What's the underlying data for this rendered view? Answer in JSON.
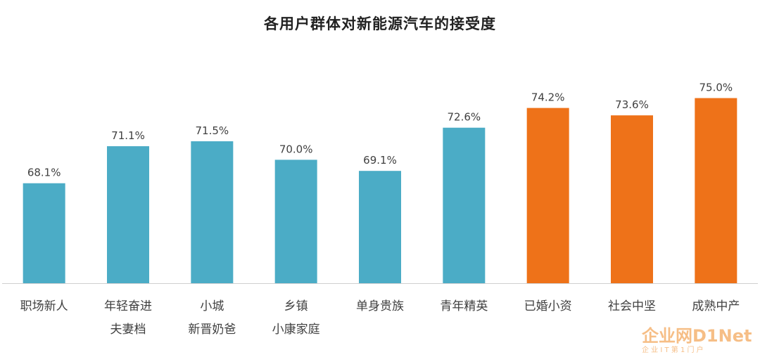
{
  "chart_data": {
    "type": "bar",
    "title": "各用户群体对新能源汽车的接受度",
    "categories": [
      [
        "职场新人"
      ],
      [
        "年轻奋进",
        "夫妻档"
      ],
      [
        "小城",
        "新晋奶爸"
      ],
      [
        "乡镇",
        "小康家庭"
      ],
      [
        "单身贵族"
      ],
      [
        "青年精英"
      ],
      [
        "已婚小资"
      ],
      [
        "社会中坚"
      ],
      [
        "成熟中产"
      ]
    ],
    "values": [
      68.1,
      71.1,
      71.5,
      70.0,
      69.1,
      72.6,
      74.2,
      73.6,
      75.0
    ],
    "value_labels": [
      "68.1%",
      "71.1%",
      "71.5%",
      "70.0%",
      "69.1%",
      "72.6%",
      "74.2%",
      "73.6%",
      "75.0%"
    ],
    "bar_colors": [
      "#4BACC6",
      "#4BACC6",
      "#4BACC6",
      "#4BACC6",
      "#4BACC6",
      "#4BACC6",
      "#EE7219",
      "#EE7219",
      "#EE7219"
    ],
    "ylim": [
      60,
      76
    ],
    "xlabel": "",
    "ylabel": "",
    "grid": false,
    "legend": "none"
  },
  "watermark": {
    "logo_text": "企业网D1Net",
    "tagline": "企 业 I T 第 1 门 户"
  }
}
